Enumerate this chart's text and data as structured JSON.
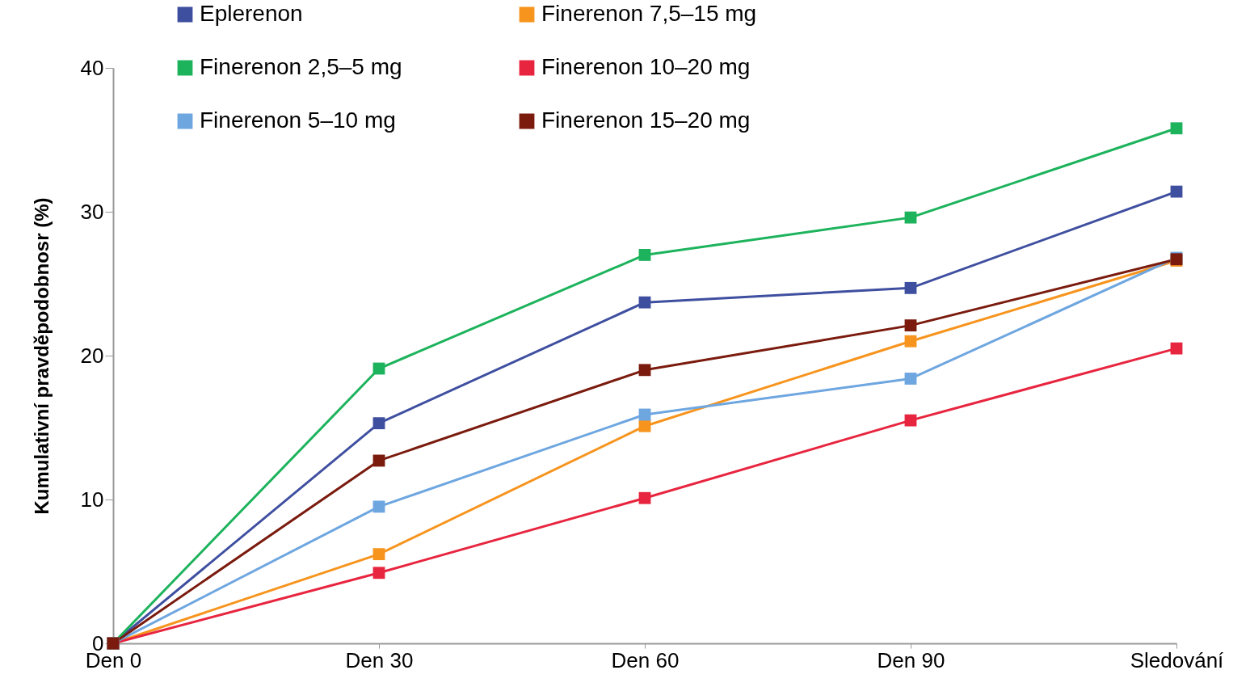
{
  "chart_data": {
    "type": "line",
    "ylabel": "Kumulativní pravděpodobnosr (%)",
    "categories": [
      "Den 0",
      "Den 30",
      "Den 60",
      "Den 90",
      "Sledování"
    ],
    "series": [
      {
        "name": "Eplerenon",
        "color": "#3f4fa0",
        "values": [
          0,
          15.3,
          23.7,
          24.7,
          31.4
        ]
      },
      {
        "name": "Finerenon 7,5–15 mg",
        "color": "#f7941d",
        "values": [
          0,
          6.2,
          15.1,
          21.0,
          26.6
        ]
      },
      {
        "name": "Finerenon 2,5–5 mg",
        "color": "#1db35c",
        "values": [
          0,
          19.1,
          27.0,
          29.6,
          35.8
        ]
      },
      {
        "name": "Finerenon 10–20 mg",
        "color": "#e8253f",
        "values": [
          0,
          4.9,
          10.1,
          15.5,
          20.5
        ]
      },
      {
        "name": "Finerenon 5–10 mg",
        "color": "#6ea6e0",
        "values": [
          0,
          9.5,
          15.9,
          18.4,
          26.8
        ]
      },
      {
        "name": "Finerenon 15–20 mg",
        "color": "#7a1b0e",
        "values": [
          0,
          12.7,
          19.0,
          22.1,
          26.7
        ]
      }
    ],
    "ylim": [
      0,
      40
    ],
    "yticks": [
      0,
      10,
      20,
      30,
      40
    ],
    "grid": false,
    "legend": "top",
    "marker": "square",
    "line_style": "solid"
  }
}
